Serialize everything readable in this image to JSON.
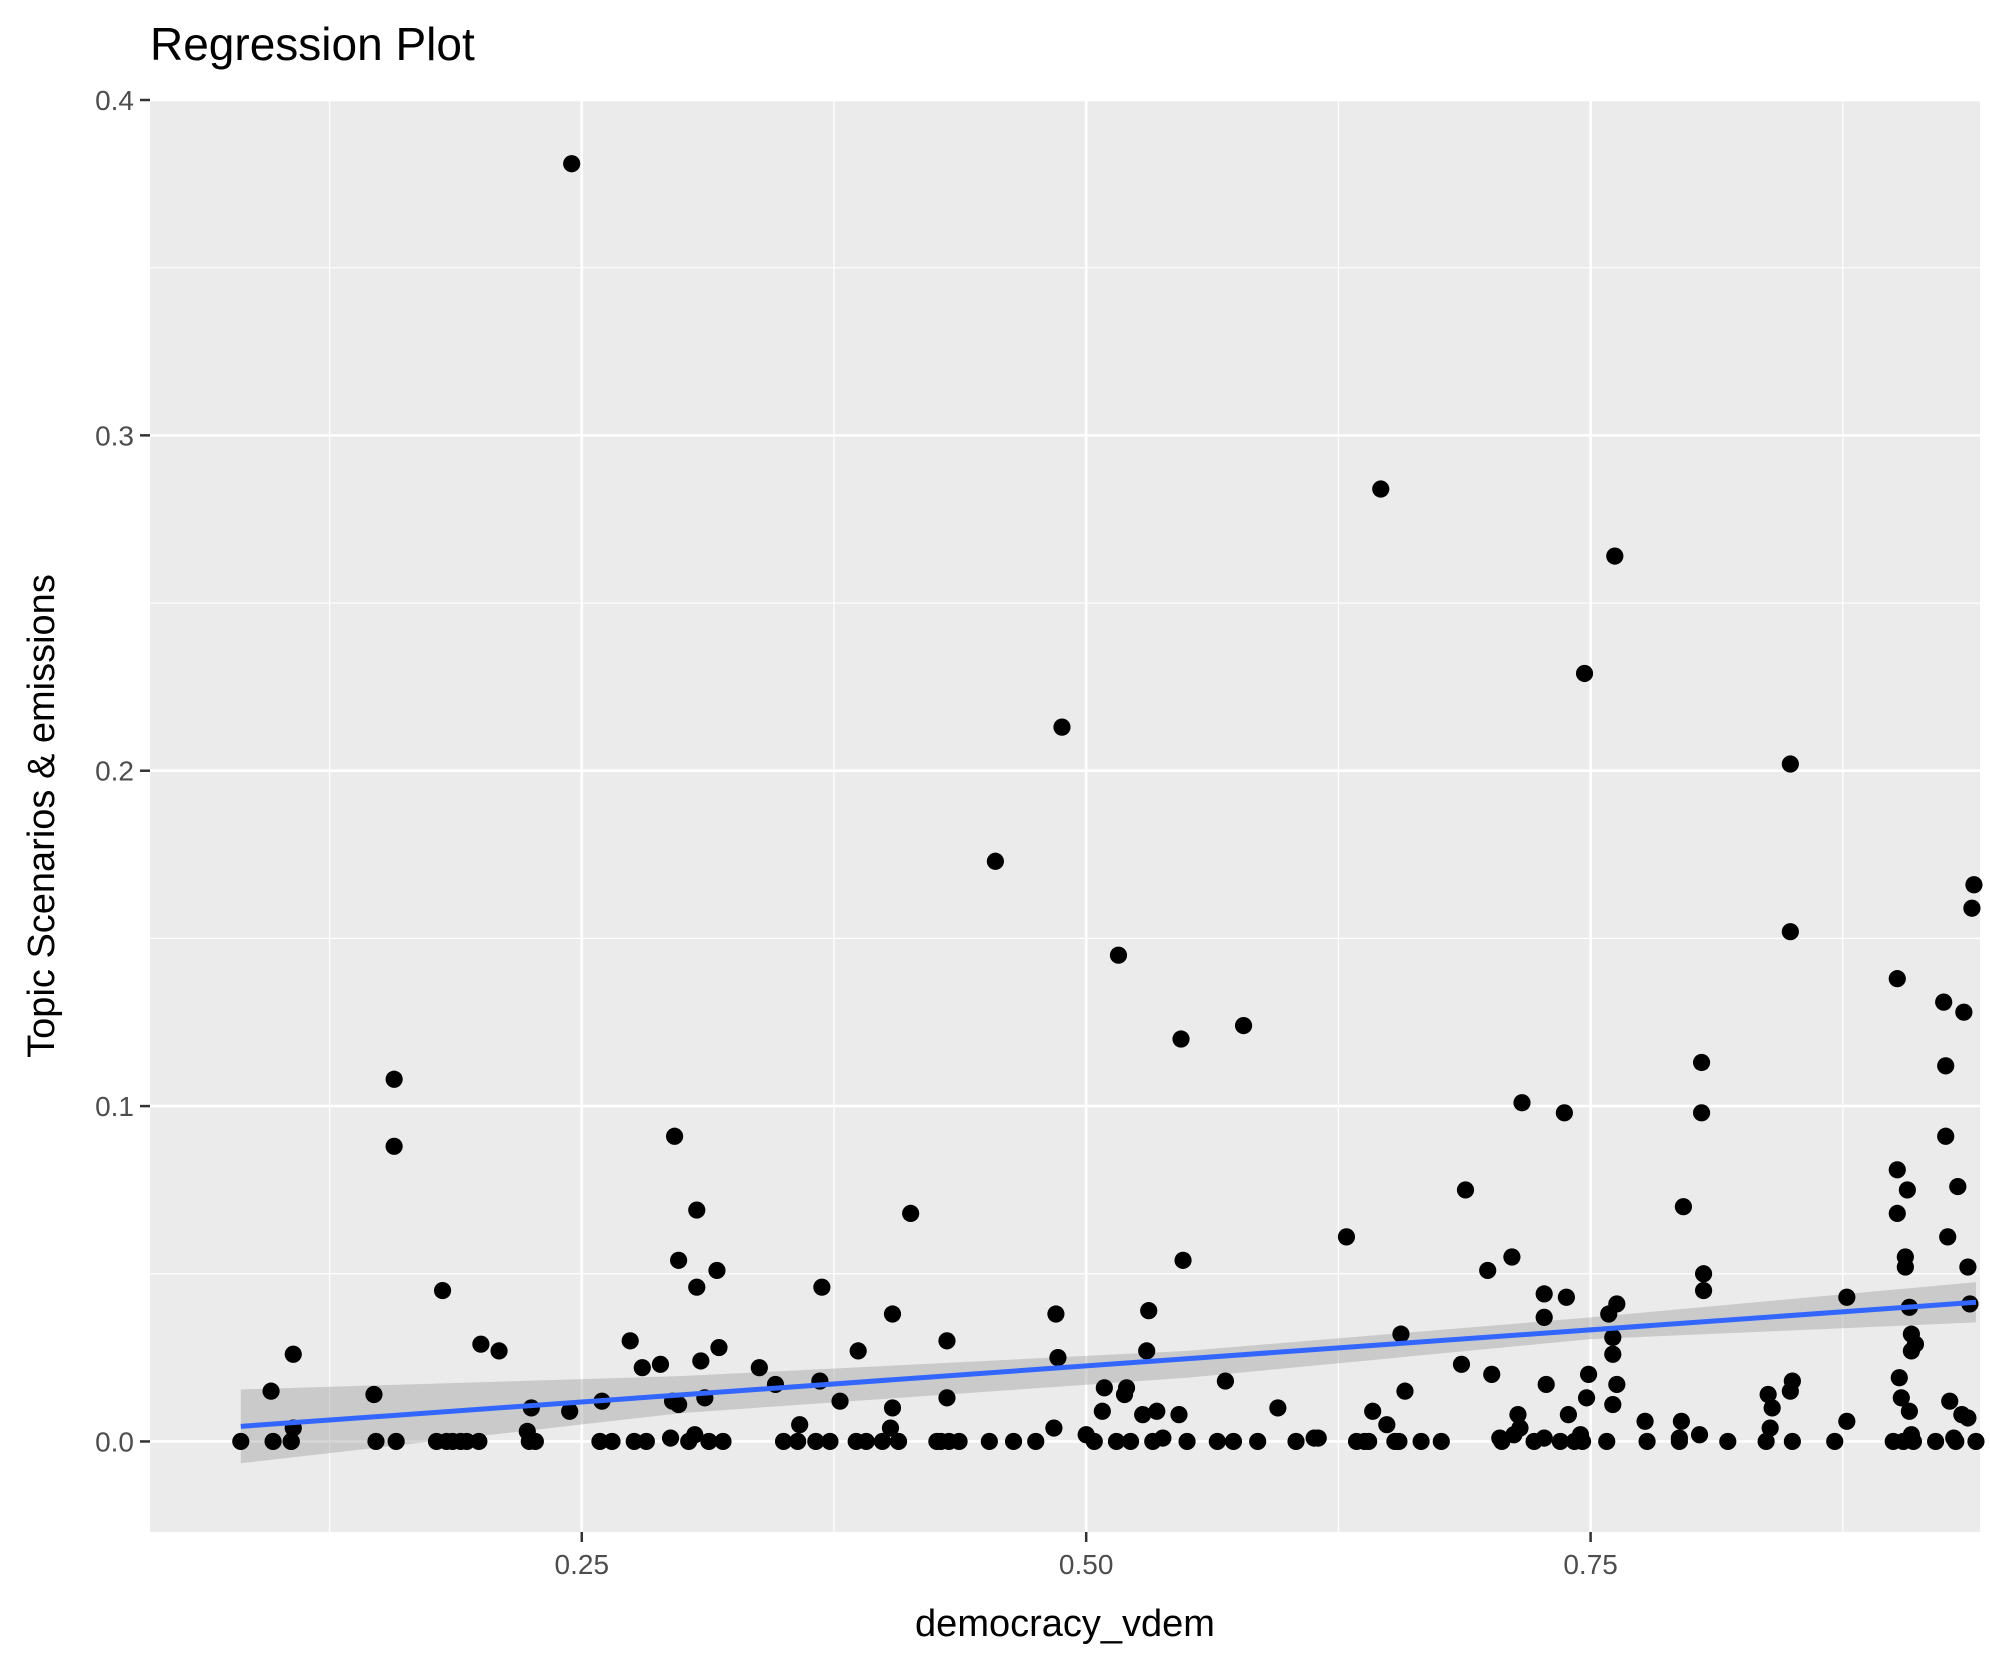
{
  "chart_data": {
    "type": "scatter",
    "title": "Regression Plot",
    "xlabel": "democracy_vdem",
    "ylabel": "Topic Scenarios & emissions",
    "xlim": [
      0.036,
      0.943
    ],
    "ylim": [
      -0.027,
      0.4
    ],
    "x_ticks": [
      0.25,
      0.5,
      0.75
    ],
    "x_tick_labels": [
      "0.25",
      "0.50",
      "0.75"
    ],
    "y_ticks": [
      0.0,
      0.1,
      0.2,
      0.3,
      0.4
    ],
    "y_tick_labels": [
      "0.0",
      "0.1",
      "0.2",
      "0.3",
      "0.4"
    ],
    "grid": true,
    "background": "#ebebeb",
    "grid_color": "#ffffff",
    "point_color": "#000000",
    "line_color": "#3366ff",
    "band_color": "#999999",
    "points": [
      [
        0.081,
        0.0
      ],
      [
        0.096,
        0.015
      ],
      [
        0.097,
        0.0
      ],
      [
        0.106,
        0.0
      ],
      [
        0.106,
        0.0
      ],
      [
        0.107,
        0.004
      ],
      [
        0.107,
        0.026
      ],
      [
        0.147,
        0.014
      ],
      [
        0.148,
        0.0
      ],
      [
        0.157,
        0.108
      ],
      [
        0.157,
        0.088
      ],
      [
        0.158,
        0.0
      ],
      [
        0.178,
        0.0
      ],
      [
        0.181,
        0.045
      ],
      [
        0.183,
        0.0
      ],
      [
        0.186,
        0.0
      ],
      [
        0.19,
        0.0
      ],
      [
        0.193,
        0.0
      ],
      [
        0.2,
        0.029
      ],
      [
        0.199,
        0.0
      ],
      [
        0.209,
        0.027
      ],
      [
        0.223,
        0.003
      ],
      [
        0.224,
        0.0
      ],
      [
        0.225,
        0.01
      ],
      [
        0.227,
        0.0
      ],
      [
        0.244,
        0.009
      ],
      [
        0.245,
        0.381
      ],
      [
        0.259,
        0.0
      ],
      [
        0.26,
        0.012
      ],
      [
        0.265,
        0.0
      ],
      [
        0.274,
        0.03
      ],
      [
        0.276,
        0.0
      ],
      [
        0.28,
        0.022
      ],
      [
        0.282,
        0.0
      ],
      [
        0.289,
        0.023
      ],
      [
        0.294,
        0.001
      ],
      [
        0.295,
        0.012
      ],
      [
        0.296,
        0.091
      ],
      [
        0.298,
        0.054
      ],
      [
        0.298,
        0.011
      ],
      [
        0.303,
        0.0
      ],
      [
        0.306,
        0.002
      ],
      [
        0.307,
        0.069
      ],
      [
        0.307,
        0.046
      ],
      [
        0.309,
        0.024
      ],
      [
        0.311,
        0.013
      ],
      [
        0.313,
        0.0
      ],
      [
        0.317,
        0.051
      ],
      [
        0.318,
        0.028
      ],
      [
        0.32,
        0.0
      ],
      [
        0.338,
        0.022
      ],
      [
        0.346,
        0.017
      ],
      [
        0.35,
        0.0
      ],
      [
        0.357,
        0.0
      ],
      [
        0.358,
        0.005
      ],
      [
        0.366,
        0.0
      ],
      [
        0.368,
        0.018
      ],
      [
        0.369,
        0.046
      ],
      [
        0.373,
        0.0
      ],
      [
        0.378,
        0.012
      ],
      [
        0.386,
        0.0
      ],
      [
        0.387,
        0.027
      ],
      [
        0.391,
        0.0
      ],
      [
        0.399,
        0.0
      ],
      [
        0.403,
        0.004
      ],
      [
        0.404,
        0.01
      ],
      [
        0.404,
        0.038
      ],
      [
        0.407,
        0.0
      ],
      [
        0.413,
        0.068
      ],
      [
        0.426,
        0.0
      ],
      [
        0.428,
        0.0
      ],
      [
        0.431,
        0.03
      ],
      [
        0.431,
        0.013
      ],
      [
        0.432,
        0.0
      ],
      [
        0.437,
        0.0
      ],
      [
        0.452,
        0.0
      ],
      [
        0.455,
        0.173
      ],
      [
        0.464,
        0.0
      ],
      [
        0.475,
        0.0
      ],
      [
        0.484,
        0.004
      ],
      [
        0.485,
        0.038
      ],
      [
        0.486,
        0.025
      ],
      [
        0.488,
        0.213
      ],
      [
        0.5,
        0.002
      ],
      [
        0.504,
        0.0
      ],
      [
        0.508,
        0.009
      ],
      [
        0.509,
        0.016
      ],
      [
        0.515,
        0.0
      ],
      [
        0.516,
        0.145
      ],
      [
        0.519,
        0.014
      ],
      [
        0.52,
        0.016
      ],
      [
        0.522,
        0.0
      ],
      [
        0.528,
        0.008
      ],
      [
        0.53,
        0.027
      ],
      [
        0.531,
        0.039
      ],
      [
        0.533,
        0.0
      ],
      [
        0.535,
        0.009
      ],
      [
        0.538,
        0.001
      ],
      [
        0.546,
        0.008
      ],
      [
        0.547,
        0.12
      ],
      [
        0.548,
        0.054
      ],
      [
        0.55,
        0.0
      ],
      [
        0.565,
        0.0
      ],
      [
        0.569,
        0.018
      ],
      [
        0.573,
        0.0
      ],
      [
        0.578,
        0.124
      ],
      [
        0.585,
        0.0
      ],
      [
        0.595,
        0.01
      ],
      [
        0.604,
        0.0
      ],
      [
        0.613,
        0.001
      ],
      [
        0.615,
        0.001
      ],
      [
        0.629,
        0.061
      ],
      [
        0.634,
        0.0
      ],
      [
        0.638,
        0.0
      ],
      [
        0.64,
        0.0
      ],
      [
        0.642,
        0.009
      ],
      [
        0.646,
        0.284
      ],
      [
        0.649,
        0.005
      ],
      [
        0.653,
        0.0
      ],
      [
        0.655,
        0.0
      ],
      [
        0.656,
        0.032
      ],
      [
        0.658,
        0.015
      ],
      [
        0.666,
        0.0
      ],
      [
        0.676,
        0.0
      ],
      [
        0.686,
        0.023
      ],
      [
        0.688,
        0.075
      ],
      [
        0.699,
        0.051
      ],
      [
        0.701,
        0.02
      ],
      [
        0.705,
        0.001
      ],
      [
        0.706,
        0.0
      ],
      [
        0.711,
        0.055
      ],
      [
        0.712,
        0.002
      ],
      [
        0.714,
        0.008
      ],
      [
        0.715,
        0.004
      ],
      [
        0.716,
        0.101
      ],
      [
        0.722,
        0.0
      ],
      [
        0.727,
        0.001
      ],
      [
        0.727,
        0.044
      ],
      [
        0.727,
        0.037
      ],
      [
        0.728,
        0.017
      ],
      [
        0.735,
        0.0
      ],
      [
        0.737,
        0.098
      ],
      [
        0.738,
        0.043
      ],
      [
        0.739,
        0.008
      ],
      [
        0.742,
        0.0
      ],
      [
        0.745,
        0.002
      ],
      [
        0.746,
        0.0
      ],
      [
        0.747,
        0.229
      ],
      [
        0.748,
        0.013
      ],
      [
        0.749,
        0.02
      ],
      [
        0.758,
        0.0
      ],
      [
        0.759,
        0.038
      ],
      [
        0.761,
        0.011
      ],
      [
        0.761,
        0.031
      ],
      [
        0.761,
        0.026
      ],
      [
        0.762,
        0.264
      ],
      [
        0.763,
        0.041
      ],
      [
        0.763,
        0.017
      ],
      [
        0.777,
        0.006
      ],
      [
        0.778,
        0.0
      ],
      [
        0.794,
        0.0
      ],
      [
        0.794,
        0.001
      ],
      [
        0.795,
        0.006
      ],
      [
        0.796,
        0.07
      ],
      [
        0.804,
        0.002
      ],
      [
        0.805,
        0.113
      ],
      [
        0.805,
        0.098
      ],
      [
        0.806,
        0.05
      ],
      [
        0.806,
        0.045
      ],
      [
        0.818,
        0.0
      ],
      [
        0.837,
        0.0
      ],
      [
        0.838,
        0.014
      ],
      [
        0.839,
        0.004
      ],
      [
        0.84,
        0.01
      ],
      [
        0.849,
        0.015
      ],
      [
        0.849,
        0.202
      ],
      [
        0.849,
        0.152
      ],
      [
        0.85,
        0.018
      ],
      [
        0.85,
        0.0
      ],
      [
        0.871,
        0.0
      ],
      [
        0.877,
        0.043
      ],
      [
        0.877,
        0.006
      ],
      [
        0.9,
        0.0
      ],
      [
        0.902,
        0.138
      ],
      [
        0.902,
        0.081
      ],
      [
        0.902,
        0.068
      ],
      [
        0.903,
        0.019
      ],
      [
        0.904,
        0.013
      ],
      [
        0.905,
        0.0
      ],
      [
        0.906,
        0.055
      ],
      [
        0.906,
        0.052
      ],
      [
        0.907,
        0.075
      ],
      [
        0.908,
        0.009
      ],
      [
        0.908,
        0.04
      ],
      [
        0.909,
        0.032
      ],
      [
        0.909,
        0.027
      ],
      [
        0.909,
        0.002
      ],
      [
        0.91,
        0.0
      ],
      [
        0.911,
        0.029
      ],
      [
        0.921,
        0.0
      ],
      [
        0.925,
        0.131
      ],
      [
        0.926,
        0.112
      ],
      [
        0.926,
        0.091
      ],
      [
        0.927,
        0.061
      ],
      [
        0.928,
        0.012
      ],
      [
        0.93,
        0.001
      ],
      [
        0.931,
        0.0
      ],
      [
        0.932,
        0.076
      ],
      [
        0.934,
        0.008
      ],
      [
        0.935,
        0.128
      ],
      [
        0.937,
        0.007
      ],
      [
        0.937,
        0.052
      ],
      [
        0.938,
        0.041
      ],
      [
        0.939,
        0.159
      ],
      [
        0.94,
        0.166
      ],
      [
        0.941,
        0.0
      ]
    ],
    "regression_line": {
      "x": [
        0.081,
        0.941
      ],
      "y": [
        0.0045,
        0.0415
      ]
    },
    "confidence_band": {
      "x": [
        0.081,
        0.3,
        0.55,
        0.75,
        0.941
      ],
      "upper": [
        0.0155,
        0.0195,
        0.027,
        0.037,
        0.0475
      ],
      "lower": [
        -0.0065,
        0.0085,
        0.019,
        0.0305,
        0.0355
      ]
    }
  }
}
